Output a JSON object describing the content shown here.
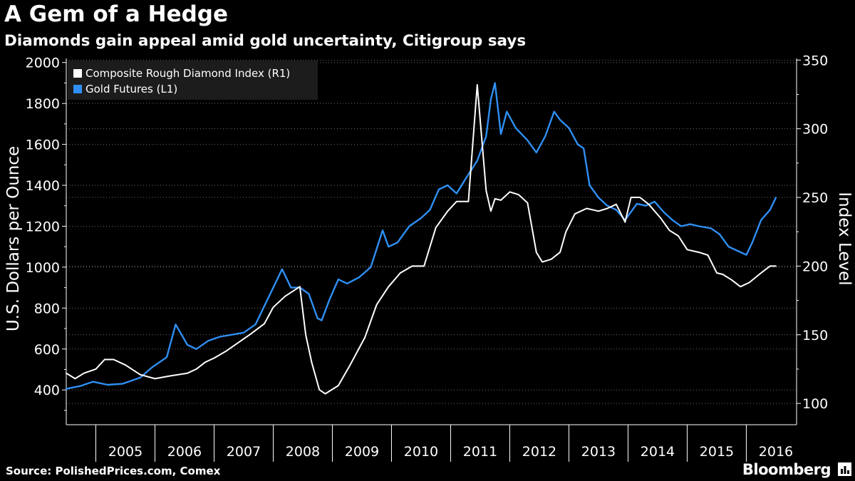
{
  "header": {
    "title": "A Gem of a Hedge",
    "subtitle": "Diamonds gain appeal amid gold uncertainty, Citigroup says"
  },
  "footer": {
    "source": "Source: PolishedPrices.com, Comex",
    "brand": "Bloomberg",
    "brand_icon": "bar-chart-icon"
  },
  "colors": {
    "background": "#000000",
    "gold_series": "#2f8ff2",
    "diamond_series": "#ffffff",
    "grid": "#6d6d6d",
    "legend_background": "#1c1c1c"
  },
  "chart_data": {
    "type": "line",
    "x_tick_labels": [
      "2005",
      "2006",
      "2007",
      "2008",
      "2009",
      "2010",
      "2011",
      "2012",
      "2013",
      "2014",
      "2015",
      "2016"
    ],
    "x_range": [
      2004.5,
      2016.85
    ],
    "y_left": {
      "label": "U.S. Dollars per Ounce",
      "range": [
        230,
        2020
      ],
      "ticks": [
        400,
        600,
        800,
        1000,
        1200,
        1400,
        1600,
        1800,
        2000
      ]
    },
    "y_right": {
      "label": "Index Level",
      "range": [
        84.5,
        351.2
      ],
      "ticks": [
        100,
        150,
        200,
        250,
        300,
        350
      ]
    },
    "grid": true,
    "legend_position": "top-left",
    "legend": [
      {
        "label": "Composite Rough Diamond Index (R1)",
        "color": "#ffffff"
      },
      {
        "label": "Gold Futures (L1)",
        "color": "#2f8ff2"
      }
    ],
    "series": [
      {
        "name": "Gold Futures (L1)",
        "axis": "left",
        "color": "#2f8ff2",
        "x": [
          2004.5,
          2004.75,
          2004.95,
          2005.2,
          2005.45,
          2005.75,
          2005.95,
          2006.2,
          2006.35,
          2006.55,
          2006.7,
          2006.9,
          2007.1,
          2007.3,
          2007.5,
          2007.7,
          2007.85,
          2008.0,
          2008.15,
          2008.3,
          2008.45,
          2008.6,
          2008.75,
          2008.82,
          2008.95,
          2009.1,
          2009.25,
          2009.45,
          2009.65,
          2009.85,
          2009.95,
          2010.1,
          2010.3,
          2010.5,
          2010.65,
          2010.8,
          2010.95,
          2011.1,
          2011.25,
          2011.45,
          2011.6,
          2011.68,
          2011.75,
          2011.85,
          2011.95,
          2012.1,
          2012.3,
          2012.45,
          2012.6,
          2012.75,
          2012.85,
          2013.0,
          2013.15,
          2013.25,
          2013.35,
          2013.5,
          2013.65,
          2013.8,
          2013.95,
          2014.15,
          2014.3,
          2014.45,
          2014.6,
          2014.75,
          2014.9,
          2015.05,
          2015.2,
          2015.4,
          2015.55,
          2015.7,
          2015.85,
          2016.0,
          2016.1,
          2016.25,
          2016.4,
          2016.5
        ],
        "y": [
          405,
          420,
          440,
          425,
          430,
          460,
          510,
          560,
          720,
          620,
          600,
          640,
          660,
          670,
          680,
          720,
          810,
          900,
          990,
          900,
          900,
          870,
          750,
          740,
          840,
          940,
          920,
          950,
          1000,
          1180,
          1100,
          1120,
          1200,
          1240,
          1280,
          1380,
          1400,
          1360,
          1430,
          1520,
          1640,
          1820,
          1900,
          1650,
          1760,
          1680,
          1620,
          1560,
          1640,
          1760,
          1720,
          1680,
          1600,
          1580,
          1400,
          1340,
          1300,
          1280,
          1230,
          1310,
          1300,
          1320,
          1270,
          1230,
          1200,
          1210,
          1200,
          1190,
          1160,
          1100,
          1080,
          1060,
          1120,
          1230,
          1280,
          1340
        ]
      },
      {
        "name": "Composite Rough Diamond Index (R1)",
        "axis": "right",
        "color": "#ffffff",
        "x": [
          2004.5,
          2004.65,
          2004.8,
          2005.0,
          2005.15,
          2005.3,
          2005.5,
          2005.75,
          2006.0,
          2006.25,
          2006.55,
          2006.7,
          2006.85,
          2007.0,
          2007.2,
          2007.4,
          2007.6,
          2007.85,
          2008.0,
          2008.2,
          2008.45,
          2008.55,
          2008.65,
          2008.78,
          2008.88,
          2009.1,
          2009.3,
          2009.55,
          2009.75,
          2009.95,
          2010.15,
          2010.35,
          2010.55,
          2010.75,
          2010.95,
          2011.1,
          2011.3,
          2011.45,
          2011.6,
          2011.68,
          2011.75,
          2011.85,
          2012.0,
          2012.15,
          2012.3,
          2012.45,
          2012.55,
          2012.7,
          2012.85,
          2012.95,
          2013.1,
          2013.3,
          2013.5,
          2013.65,
          2013.8,
          2013.95,
          2014.05,
          2014.2,
          2014.35,
          2014.55,
          2014.7,
          2014.85,
          2015.0,
          2015.2,
          2015.35,
          2015.5,
          2015.6,
          2015.75,
          2015.9,
          2016.05,
          2016.25,
          2016.4,
          2016.5
        ],
        "y": [
          122,
          118,
          122,
          125,
          132,
          132,
          128,
          121,
          118,
          120,
          122,
          125,
          130,
          133,
          138,
          144,
          150,
          158,
          170,
          178,
          185,
          150,
          130,
          110,
          107,
          113,
          128,
          148,
          172,
          185,
          195,
          200,
          200,
          228,
          240,
          247,
          247,
          332,
          255,
          240,
          249,
          248,
          254,
          252,
          246,
          210,
          203,
          205,
          210,
          225,
          238,
          242,
          240,
          242,
          245,
          232,
          250,
          250,
          245,
          235,
          226,
          222,
          212,
          210,
          208,
          195,
          194,
          190,
          185,
          188,
          195,
          200,
          200
        ]
      }
    ]
  }
}
